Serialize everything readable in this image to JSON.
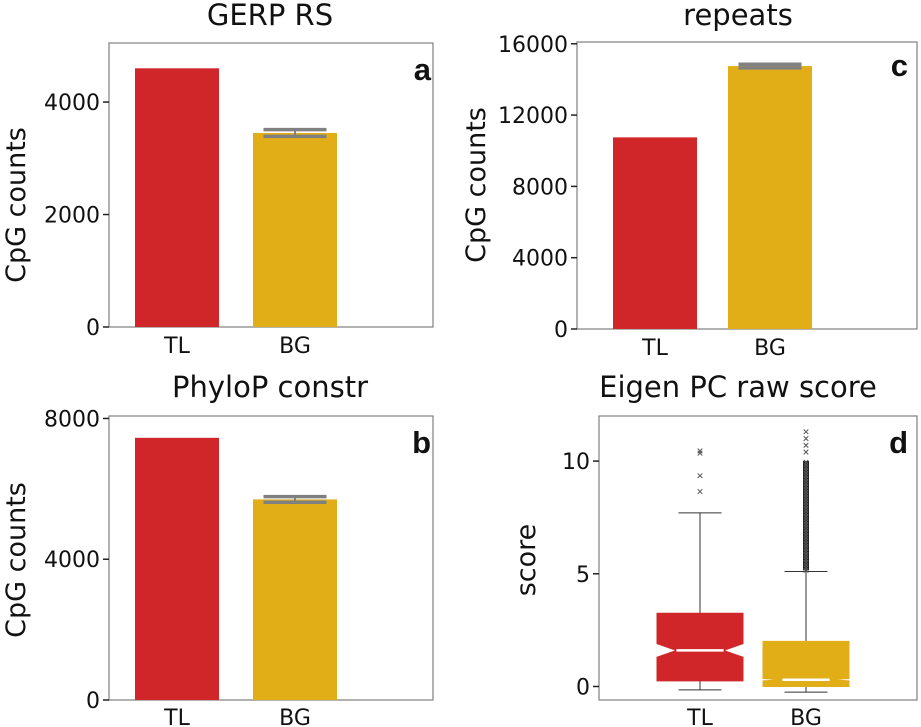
{
  "colors": {
    "TL": "#d0262a",
    "BG": "#e2ae18",
    "errorbar": "#808080",
    "frame": "#7f7f7f",
    "median": "#ffffff"
  },
  "chart_data": [
    {
      "id": "a",
      "panel_label": "a",
      "type": "bar",
      "title": "GERP RS",
      "ylabel": "CpG counts",
      "categories": [
        "TL",
        "BG"
      ],
      "values": [
        4600,
        3450
      ],
      "error": [
        null,
        [
          3390,
          3510
        ]
      ],
      "ylim": [
        0,
        5050
      ],
      "yticks": [
        0,
        2000,
        4000
      ],
      "ytick_labels": [
        "0",
        "2000",
        "4000"
      ]
    },
    {
      "id": "b",
      "panel_label": "b",
      "type": "bar",
      "title": "PhyloP constr",
      "ylabel": "CpG counts",
      "categories": [
        "TL",
        "BG"
      ],
      "values": [
        7450,
        5700
      ],
      "error": [
        null,
        [
          5620,
          5780
        ]
      ],
      "ylim": [
        0,
        8070
      ],
      "yticks": [
        0,
        4000,
        8000
      ],
      "ytick_labels": [
        "0",
        "4000",
        "8000"
      ]
    },
    {
      "id": "c",
      "panel_label": "c",
      "type": "bar",
      "title": "repeats",
      "ylabel": "CpG counts",
      "categories": [
        "TL",
        "BG"
      ],
      "values": [
        10750,
        14750
      ],
      "error": [
        null,
        [
          14650,
          14850
        ]
      ],
      "ylim": [
        0,
        16100
      ],
      "yticks": [
        0,
        4000,
        8000,
        12000,
        16000
      ],
      "ytick_labels": [
        "0",
        "4000",
        "8000",
        "12000",
        "16000"
      ]
    },
    {
      "id": "d",
      "panel_label": "d",
      "type": "box",
      "title": "Eigen PC raw score",
      "ylabel": "score",
      "categories": [
        "TL",
        "BG"
      ],
      "boxes": [
        {
          "whisker_low": -0.15,
          "q1": 0.25,
          "median": 1.6,
          "q3": 3.25,
          "whisker_high": 7.7,
          "notch_low": 1.3,
          "notch_high": 1.9,
          "outliers": [
            10.45,
            10.35,
            9.35,
            8.65
          ]
        },
        {
          "whisker_low": -0.25,
          "q1": 0.0,
          "median": 0.3,
          "q3": 2.0,
          "whisker_high": 5.1,
          "notch_low": 0.25,
          "notch_high": 0.35,
          "outliers_dense_range": [
            5.15,
            10.0
          ],
          "outliers": [
            10.4,
            10.7,
            11.0,
            11.3
          ]
        }
      ],
      "ylim": [
        -0.6,
        12.0
      ],
      "yticks": [
        0,
        5,
        10
      ],
      "ytick_labels": [
        "0",
        "5",
        "10"
      ]
    }
  ]
}
